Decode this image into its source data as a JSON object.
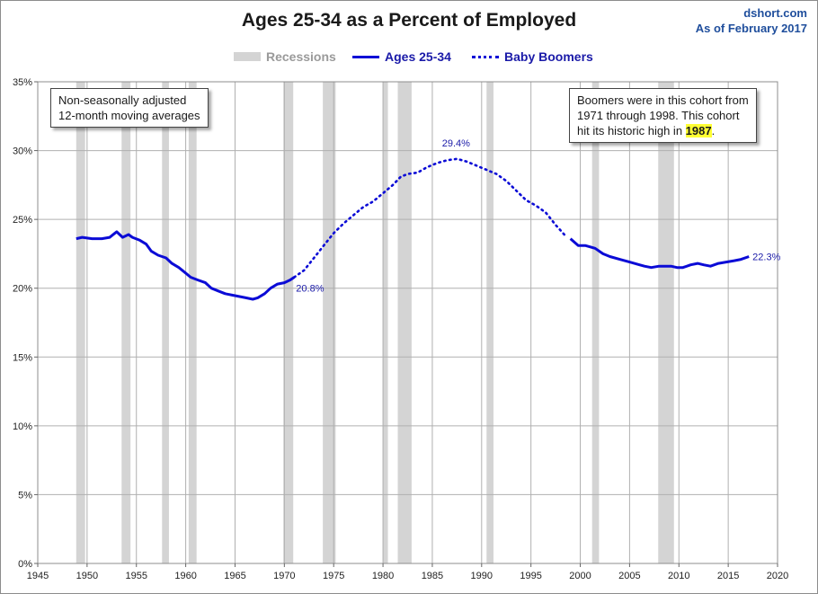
{
  "source": {
    "site": "dshort.com",
    "asof": "As of February 2017"
  },
  "legend": {
    "recessions": "Recessions",
    "series1": "Ages 25-34",
    "series2": "Baby Boomers"
  },
  "notes": {
    "left_line1": "Non-seasonally adjusted",
    "left_line2": "12-month moving averages",
    "right_line1": "Boomers were in this cohort from",
    "right_line2": "1971  through 1998.  This cohort",
    "right_line3_pre": "hit its historic high in ",
    "right_line3_hl": "1987",
    "right_line3_post": "."
  },
  "colors": {
    "line": "#0b0bd6",
    "recession": "#d4d4d4",
    "grid": "#b0b0b0",
    "label": "#1a1aa8"
  },
  "chart_data": {
    "type": "line",
    "title": "Ages 25-34 as a Percent of Employed",
    "xlabel": "",
    "ylabel": "",
    "xlim": [
      1945,
      2020
    ],
    "ylim": [
      0,
      35
    ],
    "x_ticks": [
      1945,
      1950,
      1955,
      1960,
      1965,
      1970,
      1975,
      1980,
      1985,
      1990,
      1995,
      2000,
      2005,
      2010,
      2015,
      2020
    ],
    "y_ticks": [
      "0%",
      "5%",
      "10%",
      "15%",
      "20%",
      "25%",
      "30%",
      "35%"
    ],
    "grid": true,
    "legend_position": "top",
    "recessions": [
      [
        1948.9,
        1949.8
      ],
      [
        1953.5,
        1954.4
      ],
      [
        1957.6,
        1958.3
      ],
      [
        1960.3,
        1961.1
      ],
      [
        1969.9,
        1970.9
      ],
      [
        1973.9,
        1975.2
      ],
      [
        1980.0,
        1980.5
      ],
      [
        1981.5,
        1982.9
      ],
      [
        1990.5,
        1991.2
      ],
      [
        2001.2,
        2001.9
      ],
      [
        2007.9,
        2009.5
      ]
    ],
    "series": [
      {
        "name": "Ages 25-34",
        "style": "solid",
        "x": [
          1948.9,
          1949.5,
          1950.5,
          1951.5,
          1952.3,
          1953.0,
          1953.6,
          1954.2,
          1954.6,
          1955.3,
          1956.0,
          1956.5,
          1957.2,
          1958.0,
          1958.6,
          1959.3,
          1960.0,
          1960.5,
          1961.2,
          1962.0,
          1962.6,
          1963.3,
          1964.0,
          1964.7,
          1965.4,
          1966.1,
          1966.8,
          1967.3,
          1968.0,
          1968.6,
          1969.3,
          1970.0,
          1970.6,
          1971.0
        ],
        "y": [
          23.6,
          23.7,
          23.6,
          23.6,
          23.7,
          24.1,
          23.7,
          23.9,
          23.7,
          23.5,
          23.2,
          22.7,
          22.4,
          22.2,
          21.8,
          21.5,
          21.1,
          20.8,
          20.6,
          20.4,
          20.0,
          19.8,
          19.6,
          19.5,
          19.4,
          19.3,
          19.2,
          19.3,
          19.6,
          20.0,
          20.3,
          20.4,
          20.6,
          20.8
        ]
      },
      {
        "name": "Baby Boomers",
        "style": "dotted",
        "x": [
          1971.0,
          1972.0,
          1973.0,
          1974.0,
          1975.0,
          1976.0,
          1977.0,
          1978.0,
          1979.0,
          1980.0,
          1981.0,
          1981.8,
          1982.5,
          1983.5,
          1984.5,
          1985.5,
          1986.5,
          1987.5,
          1988.5,
          1989.5,
          1990.5,
          1991.5,
          1992.5,
          1993.5,
          1994.5,
          1995.5,
          1996.5,
          1997.5,
          1998.5
        ],
        "y": [
          20.8,
          21.3,
          22.2,
          23.1,
          24.0,
          24.7,
          25.3,
          25.9,
          26.3,
          26.9,
          27.5,
          28.1,
          28.3,
          28.4,
          28.8,
          29.1,
          29.3,
          29.4,
          29.2,
          28.9,
          28.6,
          28.3,
          27.8,
          27.1,
          26.4,
          26.0,
          25.5,
          24.6,
          23.8
        ]
      },
      {
        "name": "Ages 25-34",
        "style": "solid",
        "x": [
          1999.0,
          1999.8,
          2000.5,
          2001.5,
          2002.3,
          2003.0,
          2004.0,
          2005.0,
          2006.0,
          2006.5,
          2007.2,
          2008.0,
          2008.7,
          2009.2,
          2009.8,
          2010.4,
          2011.2,
          2011.9,
          2012.5,
          2013.2,
          2014.0,
          2014.8,
          2015.6,
          2016.3,
          2017.1
        ],
        "y": [
          23.6,
          23.1,
          23.1,
          22.9,
          22.5,
          22.3,
          22.1,
          21.9,
          21.7,
          21.6,
          21.5,
          21.6,
          21.6,
          21.6,
          21.5,
          21.5,
          21.7,
          21.8,
          21.7,
          21.6,
          21.8,
          21.9,
          22.0,
          22.1,
          22.3
        ]
      }
    ],
    "annotations": [
      {
        "x": 1971.0,
        "y": 20.8,
        "text": "20.8%"
      },
      {
        "x": 1987.5,
        "y": 29.4,
        "text": "29.4%"
      },
      {
        "x": 2017.1,
        "y": 22.3,
        "text": "22.3%"
      }
    ]
  }
}
